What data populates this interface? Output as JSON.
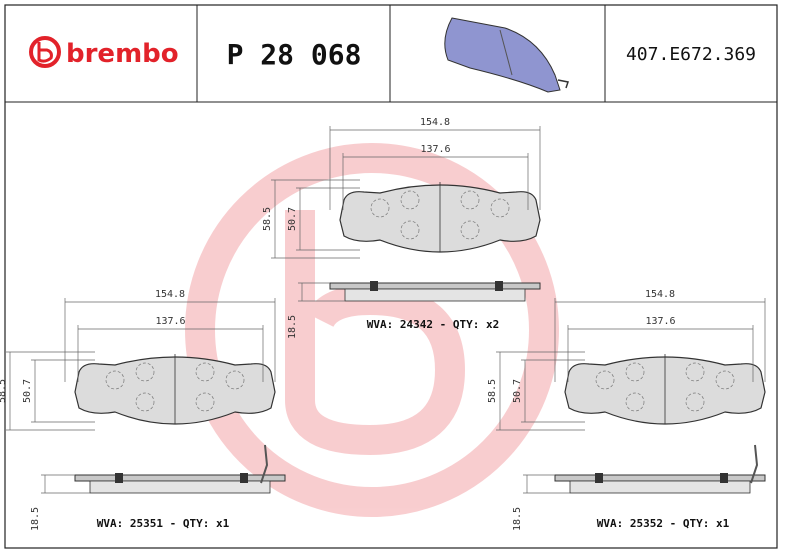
{
  "header": {
    "brand": "brembo",
    "part_number": "P 28 068",
    "code": "407.E672.369"
  },
  "drawings": [
    {
      "dimensions": {
        "overall_width": "154.8",
        "inner_width": "137.6",
        "height": "58.5",
        "inner_height": "50.7",
        "thickness": "18.5"
      },
      "label": "WVA: 24342 - QTY: x2"
    },
    {
      "dimensions": {
        "overall_width": "154.8",
        "inner_width": "137.6",
        "height": "58.5",
        "inner_height": "50.7",
        "thickness": "18.5"
      },
      "label": "WVA: 25351 - QTY: x1"
    },
    {
      "dimensions": {
        "overall_width": "154.8",
        "inner_width": "137.6",
        "height": "58.5",
        "inner_height": "50.7",
        "thickness": "18.5"
      },
      "label": "WVA: 25352 - QTY: x1"
    }
  ]
}
